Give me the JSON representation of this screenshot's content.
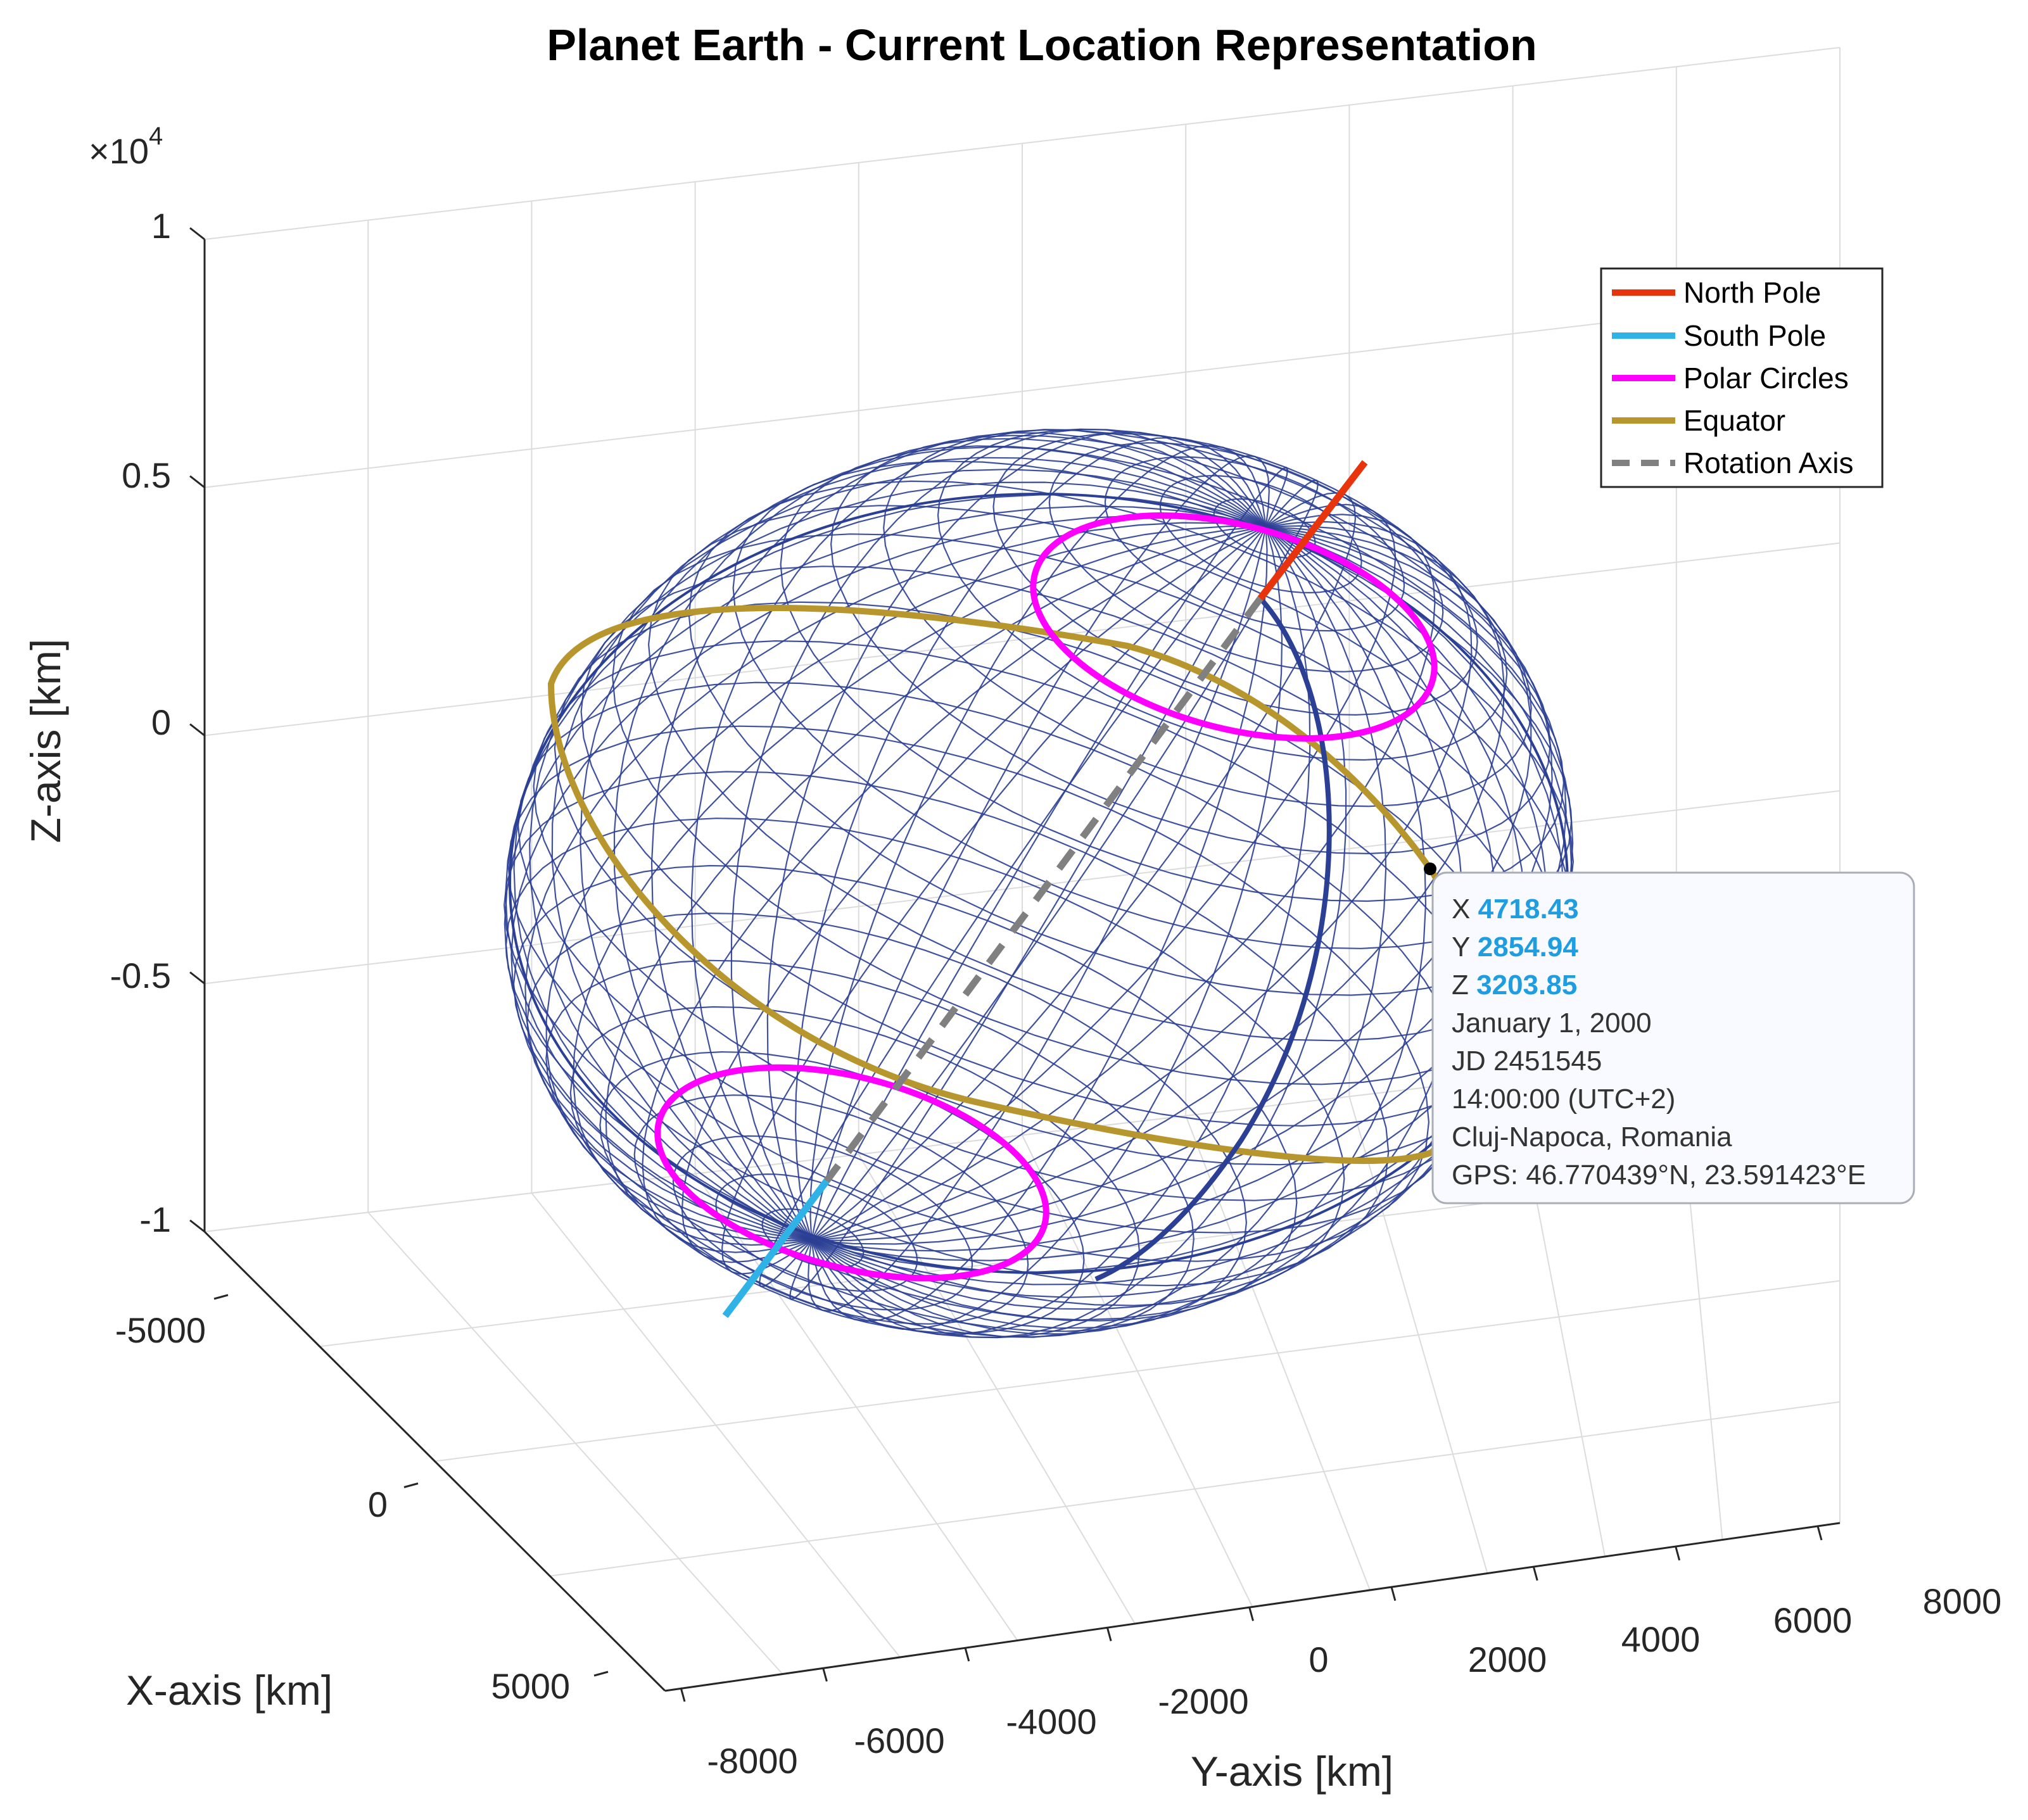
{
  "chart_data": {
    "type": "scatter",
    "title": "Planet Earth - Current Location Representation",
    "xlabel": "X-axis [km]",
    "ylabel": "Y-axis [km]",
    "zlabel": "Z-axis [km]",
    "z_exponent_label": "×10",
    "z_exponent_power": "4",
    "x_ticks": [
      "-5000",
      "0",
      "5000"
    ],
    "y_ticks": [
      "-8000",
      "-6000",
      "-4000",
      "-2000",
      "0",
      "2000",
      "4000",
      "6000",
      "8000"
    ],
    "z_ticks": [
      "1",
      "0.5",
      "0",
      "-0.5",
      "-1"
    ],
    "grid": true,
    "legend_position": "top-right",
    "legend": [
      {
        "label": "North Pole",
        "color": "#e8340c",
        "style": "solid"
      },
      {
        "label": "South Pole",
        "color": "#2fb3e6",
        "style": "solid"
      },
      {
        "label": "Polar Circles",
        "color": "#ff00ff",
        "style": "solid"
      },
      {
        "label": "Equator",
        "color": "#b8962e",
        "style": "solid"
      },
      {
        "label": "Rotation Axis",
        "color": "#808080",
        "style": "dashed"
      }
    ],
    "colors": {
      "mesh": "#2b3f94",
      "meridian": "#2b3f94",
      "marker": "#000000"
    },
    "location_point": {
      "x": 4718.43,
      "y": 2854.94,
      "z": 3203.85
    },
    "datatip": {
      "x_label": "X",
      "x_value": "4718.43",
      "y_label": "Y",
      "y_value": "2854.94",
      "z_label": "Z",
      "z_value": "3203.85",
      "lines": [
        "January 1, 2000",
        "JD 2451545",
        "14:00:00 (UTC+2)",
        "Cluj-Napoca, Romania",
        "GPS: 46.770439°N, 23.591423°E"
      ]
    }
  }
}
